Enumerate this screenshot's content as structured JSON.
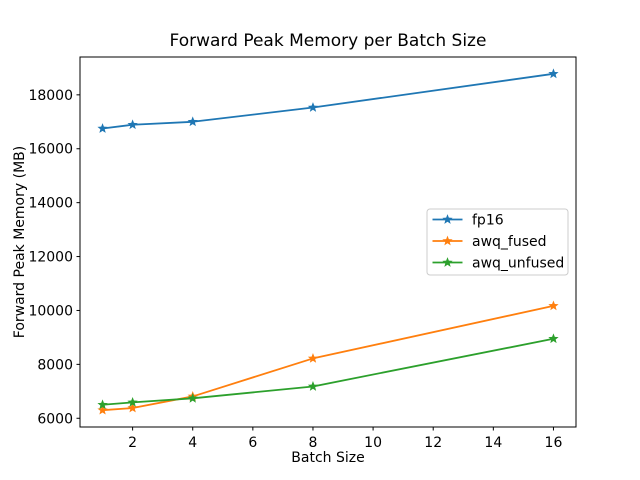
{
  "figure": {
    "title": "Forward Peak Memory per Batch Size",
    "xlabel": "Batch Size",
    "ylabel": "Forward Peak Memory (MB)"
  },
  "chart_data": {
    "type": "line",
    "title": "Forward Peak Memory per Batch Size",
    "xlabel": "Batch Size",
    "ylabel": "Forward Peak Memory (MB)",
    "x": [
      1,
      2,
      4,
      8,
      16
    ],
    "series": [
      {
        "name": "fp16",
        "color": "#1f77b4",
        "marker": "star",
        "values": [
          16750,
          16890,
          17000,
          17530,
          18780
        ]
      },
      {
        "name": "awq_fused",
        "color": "#ff7f0e",
        "marker": "star",
        "values": [
          6300,
          6380,
          6810,
          8220,
          10170
        ]
      },
      {
        "name": "awq_unfused",
        "color": "#2ca02c",
        "marker": "star",
        "values": [
          6500,
          6590,
          6740,
          7180,
          8950
        ]
      }
    ],
    "xticks": [
      2,
      4,
      6,
      8,
      10,
      12,
      14,
      16
    ],
    "yticks": [
      6000,
      8000,
      10000,
      12000,
      14000,
      16000,
      18000
    ],
    "xlim": [
      0.25,
      16.75
    ],
    "ylim": [
      5676,
      19404
    ],
    "grid": false,
    "legend": {
      "position": "center right",
      "entries": [
        "fp16",
        "awq_fused",
        "awq_unfused"
      ]
    },
    "colors": {
      "spine": "#000000",
      "tick_text": "#000000",
      "legend_edge": "#cccccc",
      "legend_bg": "#ffffff"
    }
  }
}
